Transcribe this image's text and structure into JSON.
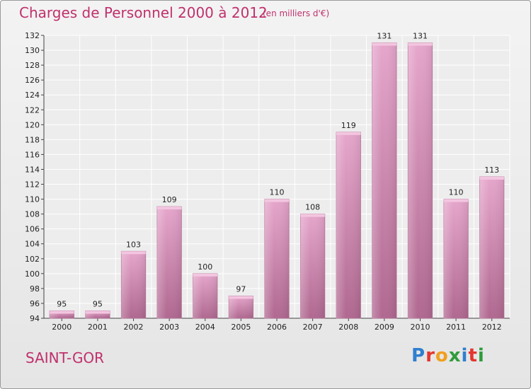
{
  "header": {
    "title": "Charges de Personnel 2000 à 2012",
    "subtitle": "(en milliers d'€)"
  },
  "footer": {
    "town": "SAINT-GOR",
    "logo_letters": [
      "P",
      "r",
      "o",
      "x",
      "i",
      "t",
      "i"
    ],
    "logo_colors": [
      "#2f7fcf",
      "#e3362e",
      "#f0a01f",
      "#2f9c3a",
      "#2f7fcf",
      "#e3362e",
      "#2f9c3a"
    ]
  },
  "colors": {
    "bar": "#c980a8",
    "bar_highlight": "#e6a6cc",
    "accent": "#c0306c"
  },
  "chart_data": {
    "type": "bar",
    "title": "Charges de Personnel 2000 à 2012",
    "subtitle": "(en milliers d'€)",
    "categories": [
      "2000",
      "2001",
      "2002",
      "2003",
      "2004",
      "2005",
      "2006",
      "2007",
      "2008",
      "2009",
      "2010",
      "2011",
      "2012"
    ],
    "values": [
      95,
      95,
      103,
      109,
      100,
      97,
      110,
      108,
      119,
      131,
      131,
      110,
      113
    ],
    "ylim": [
      94,
      132
    ],
    "yticks": [
      94,
      96,
      98,
      100,
      102,
      104,
      106,
      108,
      110,
      112,
      114,
      116,
      118,
      120,
      122,
      124,
      126,
      128,
      130,
      132
    ],
    "grid": true,
    "legend": "none"
  }
}
